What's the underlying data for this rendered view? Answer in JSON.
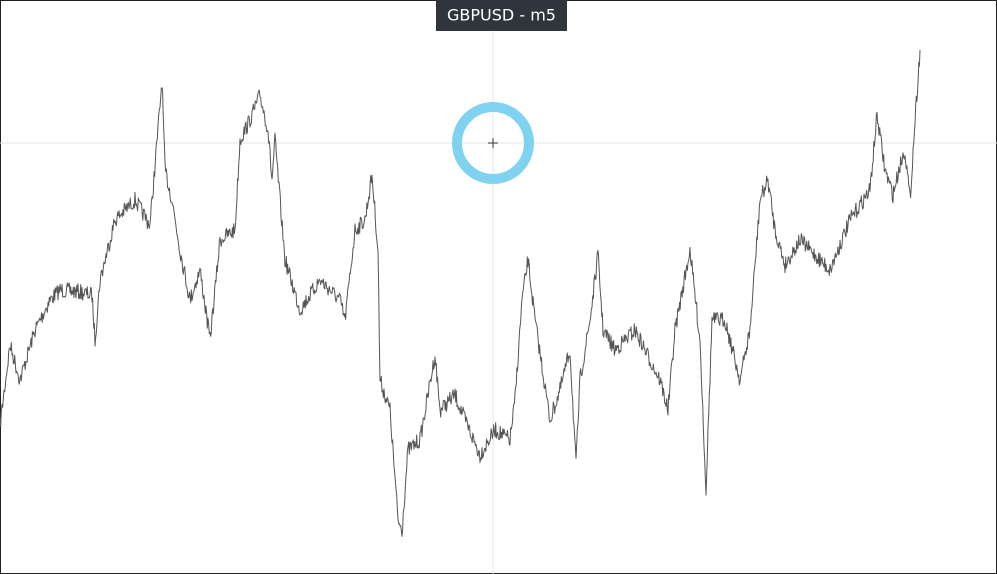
{
  "header": {
    "title": "GBPUSD - m5"
  }
}
